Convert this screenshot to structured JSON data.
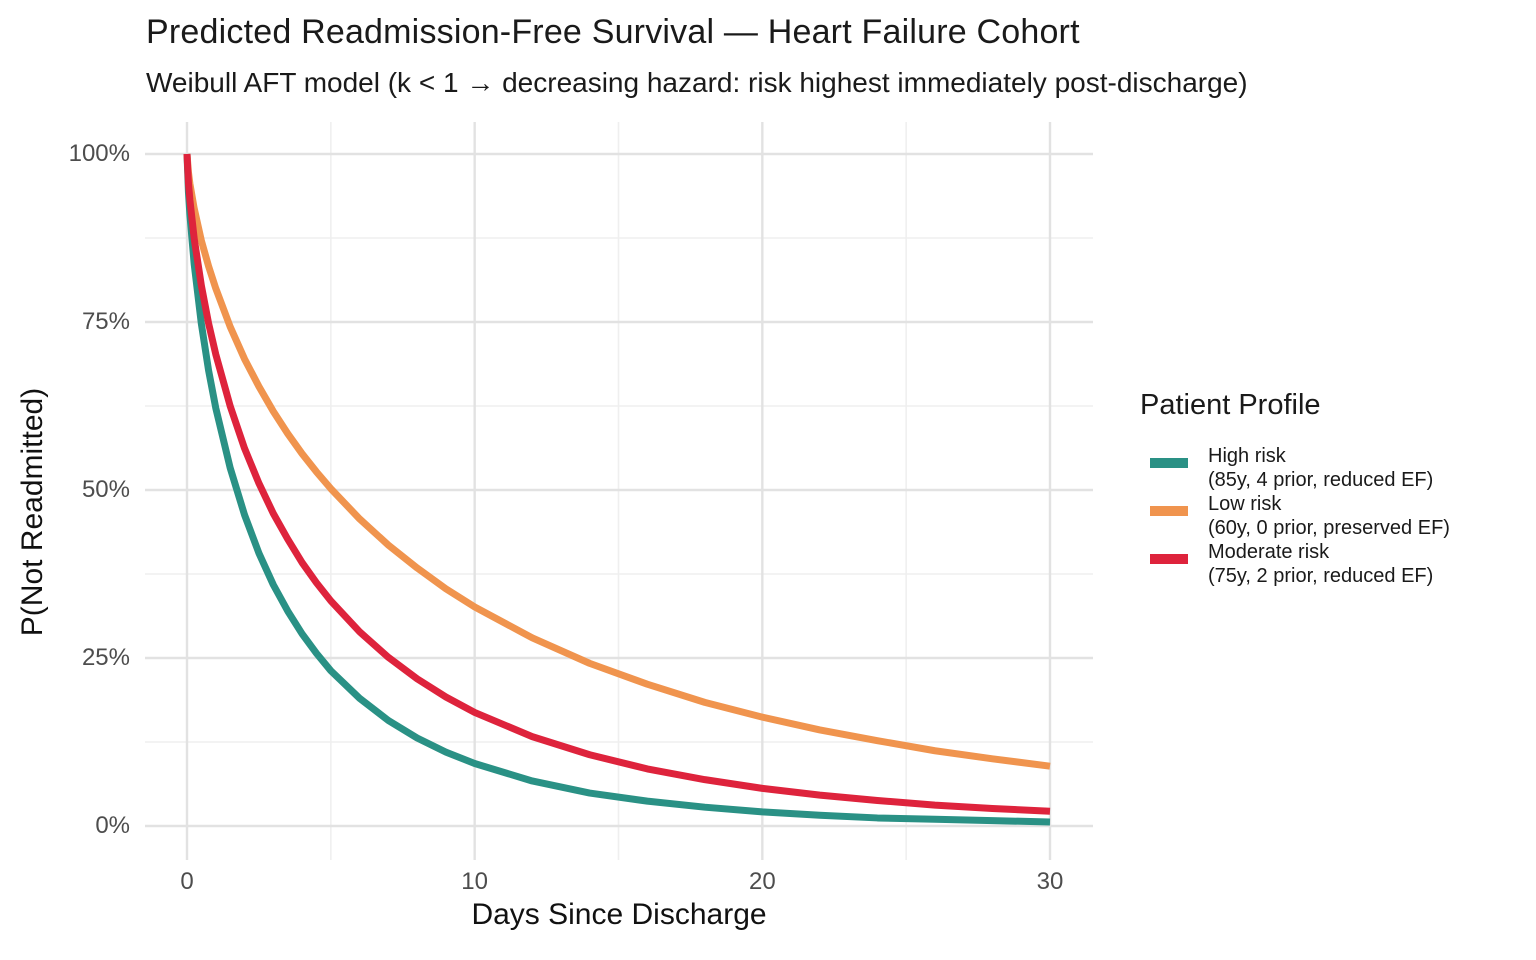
{
  "figure": {
    "background": "#ffffff"
  },
  "chart_data": {
    "type": "line",
    "title": "Predicted Readmission-Free Survival — Heart Failure Cohort",
    "subtitle": "Weibull AFT model (k < 1 → decreasing hazard: risk highest immediately post-discharge)",
    "xlabel": "Days Since Discharge",
    "ylabel": "P(Not Readmitted)",
    "x_ticks": [
      0,
      10,
      20,
      30
    ],
    "x_minor_gridlines": [
      5,
      15,
      25
    ],
    "y_ticks": [
      0,
      25,
      50,
      75,
      100
    ],
    "y_tick_labels": [
      "0%",
      "25%",
      "50%",
      "75%",
      "100%"
    ],
    "y_minor_gridlines": [
      12.5,
      37.5,
      62.5,
      87.5
    ],
    "xlim": [
      0,
      30
    ],
    "ylim": [
      0,
      100
    ],
    "grid": true,
    "legend_position": "right",
    "legend": {
      "title": "Patient Profile"
    },
    "x": [
      0,
      0.05,
      0.1,
      0.25,
      0.5,
      0.75,
      1,
      1.5,
      2,
      2.5,
      3,
      3.5,
      4,
      4.5,
      5,
      6,
      7,
      8,
      9,
      10,
      12,
      14,
      16,
      18,
      20,
      22,
      24,
      26,
      28,
      30
    ],
    "series": [
      {
        "name": "High risk",
        "detail": "(85y, 4 prior, reduced EF)",
        "color": "#2a9185",
        "values": [
          100,
          94.3,
          91.0,
          83.6,
          74.7,
          67.8,
          62.2,
          53.3,
          46.3,
          40.6,
          35.9,
          32.0,
          28.6,
          25.7,
          23.1,
          19.0,
          15.7,
          13.1,
          11.0,
          9.3,
          6.7,
          4.9,
          3.7,
          2.8,
          2.1,
          1.6,
          1.2,
          1.0,
          0.8,
          0.6
        ]
      },
      {
        "name": "Low risk",
        "detail": "(60y, 0 prior, preserved EF)",
        "color": "#f0944e",
        "values": [
          100,
          97.3,
          95.6,
          91.9,
          87.1,
          83.3,
          80.0,
          74.3,
          69.5,
          65.4,
          61.7,
          58.4,
          55.4,
          52.7,
          50.2,
          45.7,
          41.8,
          38.4,
          35.3,
          32.6,
          28.0,
          24.2,
          21.1,
          18.4,
          16.2,
          14.3,
          12.7,
          11.2,
          10.0,
          8.9
        ]
      },
      {
        "name": "Moderate risk",
        "detail": "(75y, 2 prior, reduced EF)",
        "color": "#de233c",
        "values": [
          100,
          95.7,
          93.2,
          87.4,
          80.4,
          74.8,
          70.2,
          62.5,
          56.2,
          51.0,
          46.5,
          42.7,
          39.2,
          36.2,
          33.5,
          28.9,
          25.1,
          21.9,
          19.2,
          16.9,
          13.3,
          10.6,
          8.5,
          6.9,
          5.6,
          4.6,
          3.8,
          3.1,
          2.6,
          2.2
        ]
      }
    ],
    "style": {
      "grid_major_color": "#e2e2e2",
      "grid_minor_color": "#efefef",
      "grid_major_width": 2.4,
      "grid_minor_width": 1.6,
      "curve_width": 7,
      "tick_label_color": "#4d4d4d",
      "text_color": "#1a1a1a"
    }
  }
}
